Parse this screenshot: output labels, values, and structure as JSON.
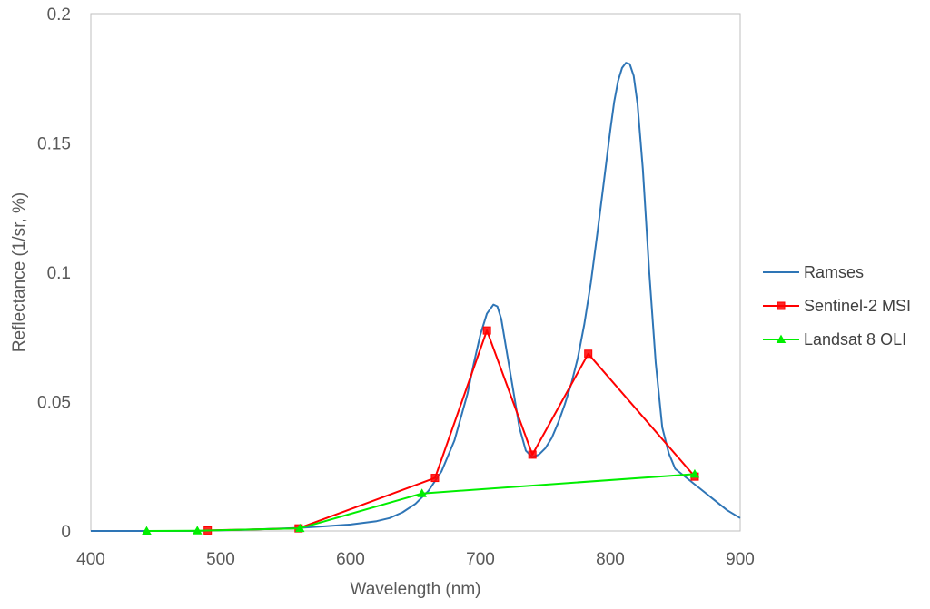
{
  "chart_data": {
    "type": "line",
    "title": "",
    "xlabel": "Wavelength (nm)",
    "ylabel": "Reflectance (1/sr, %)",
    "xlim": [
      400,
      900
    ],
    "ylim": [
      0,
      0.2
    ],
    "x_ticks": [
      "400",
      "500",
      "600",
      "700",
      "800",
      "900"
    ],
    "y_ticks": [
      "0",
      "0.05",
      "0.1",
      "0.15",
      "0.2"
    ],
    "grid": false,
    "legend_position": "right",
    "series": [
      {
        "name": "Ramses",
        "color": "#2e75b6",
        "marker": "none",
        "x": [
          400,
          440,
          480,
          520,
          560,
          580,
          600,
          620,
          630,
          640,
          650,
          660,
          670,
          680,
          690,
          695,
          700,
          705,
          710,
          713,
          716,
          720,
          725,
          730,
          735,
          740,
          745,
          750,
          755,
          760,
          765,
          770,
          775,
          780,
          785,
          790,
          795,
          800,
          803,
          806,
          809,
          812,
          815,
          818,
          821,
          825,
          830,
          835,
          840,
          845,
          850,
          860,
          870,
          880,
          890,
          900
        ],
        "y": [
          0.0,
          0.0,
          0.0,
          0.0005,
          0.0012,
          0.0018,
          0.0025,
          0.0038,
          0.005,
          0.0072,
          0.0105,
          0.0155,
          0.023,
          0.035,
          0.053,
          0.065,
          0.076,
          0.084,
          0.0875,
          0.0868,
          0.082,
          0.07,
          0.055,
          0.04,
          0.031,
          0.0285,
          0.0295,
          0.032,
          0.036,
          0.042,
          0.049,
          0.057,
          0.067,
          0.08,
          0.096,
          0.115,
          0.135,
          0.155,
          0.166,
          0.174,
          0.179,
          0.181,
          0.1805,
          0.176,
          0.165,
          0.14,
          0.1,
          0.065,
          0.04,
          0.03,
          0.024,
          0.02,
          0.016,
          0.012,
          0.008,
          0.005
        ]
      },
      {
        "name": "Sentinel-2 MSI",
        "color": "#ff0000",
        "marker": "square",
        "x": [
          490,
          560,
          665,
          705,
          740,
          783,
          865
        ],
        "y": [
          0.0002,
          0.001,
          0.0205,
          0.0775,
          0.0295,
          0.0685,
          0.021
        ]
      },
      {
        "name": "Landsat 8 OLI",
        "color": "#00ee00",
        "marker": "triangle",
        "x": [
          443,
          482,
          561,
          655,
          865
        ],
        "y": [
          0.0,
          0.0001,
          0.001,
          0.0145,
          0.022
        ]
      }
    ]
  }
}
